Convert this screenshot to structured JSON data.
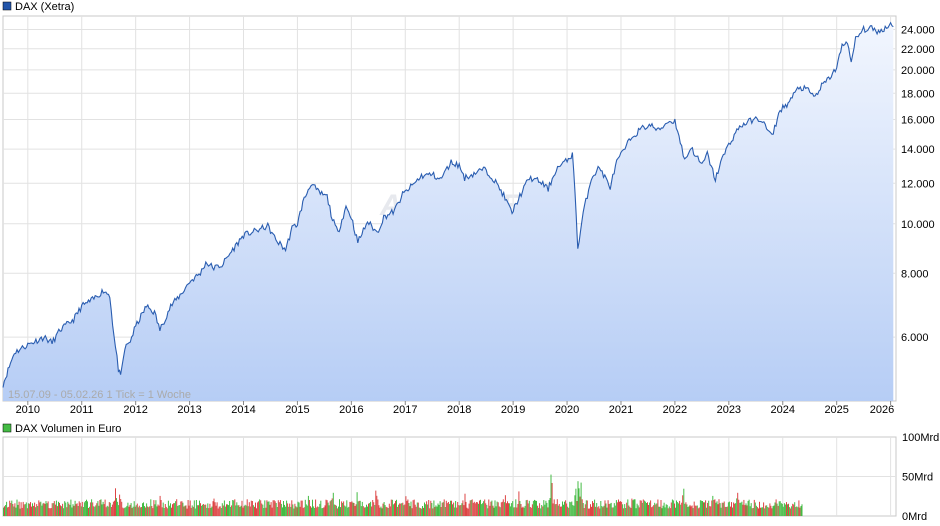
{
  "legend": {
    "price_label": "DAX (Xetra)",
    "price_color": "#2255aa",
    "volume_label": "DAX Volumen in Euro",
    "volume_color": "#44bb44"
  },
  "footnote": "15.07.09 - 05.02.26    1 Tick = 1 Woche",
  "watermark": "ARIVA.DE",
  "chart_data": [
    {
      "type": "area",
      "scale": "log",
      "grid": true,
      "ylim": [
        4500,
        25500
      ],
      "y_ticks": [
        {
          "value": 6000,
          "label": "6.000"
        },
        {
          "value": 8000,
          "label": "8.000"
        },
        {
          "value": 10000,
          "label": "10.000"
        },
        {
          "value": 12000,
          "label": "12.000"
        },
        {
          "value": 14000,
          "label": "14.000"
        },
        {
          "value": 16000,
          "label": "16.000"
        },
        {
          "value": 18000,
          "label": "18.000"
        },
        {
          "value": 20000,
          "label": "20.000"
        },
        {
          "value": 22000,
          "label": "22.000"
        },
        {
          "value": 24000,
          "label": "24.000"
        }
      ],
      "x_ticks": [
        "2010",
        "2011",
        "2012",
        "2013",
        "2014",
        "2015",
        "2016",
        "2017",
        "2018",
        "2019",
        "2020",
        "2021",
        "2022",
        "2023",
        "2024",
        "2025",
        "2026"
      ],
      "xlim": [
        2009.54,
        2026.1
      ],
      "series": [
        {
          "line_color": "#2a5db0",
          "fill_top": "#f2f6fe",
          "fill_bottom": "#b6cdf5",
          "points": [
            [
              2009.54,
              4850
            ],
            [
              2009.75,
              5600
            ],
            [
              2010.0,
              5800
            ],
            [
              2010.3,
              6000
            ],
            [
              2010.45,
              5850
            ],
            [
              2010.6,
              6200
            ],
            [
              2010.85,
              6500
            ],
            [
              2011.0,
              6900
            ],
            [
              2011.2,
              7100
            ],
            [
              2011.4,
              7400
            ],
            [
              2011.52,
              7250
            ],
            [
              2011.6,
              6000
            ],
            [
              2011.68,
              5200
            ],
            [
              2011.72,
              5000
            ],
            [
              2011.8,
              5700
            ],
            [
              2011.9,
              5900
            ],
            [
              2012.0,
              6300
            ],
            [
              2012.2,
              6900
            ],
            [
              2012.35,
              6700
            ],
            [
              2012.45,
              6200
            ],
            [
              2012.65,
              6900
            ],
            [
              2012.85,
              7300
            ],
            [
              2013.0,
              7700
            ],
            [
              2013.2,
              8000
            ],
            [
              2013.3,
              8400
            ],
            [
              2013.45,
              8200
            ],
            [
              2013.6,
              8300
            ],
            [
              2013.8,
              8900
            ],
            [
              2014.0,
              9500
            ],
            [
              2014.25,
              9700
            ],
            [
              2014.45,
              9900
            ],
            [
              2014.6,
              9300
            ],
            [
              2014.78,
              8900
            ],
            [
              2014.9,
              9800
            ],
            [
              2015.0,
              10000
            ],
            [
              2015.1,
              11000
            ],
            [
              2015.25,
              12000
            ],
            [
              2015.4,
              11500
            ],
            [
              2015.55,
              11300
            ],
            [
              2015.65,
              10200
            ],
            [
              2015.75,
              9600
            ],
            [
              2015.9,
              10800
            ],
            [
              2016.0,
              10300
            ],
            [
              2016.12,
              9200
            ],
            [
              2016.3,
              10100
            ],
            [
              2016.48,
              9600
            ],
            [
              2016.6,
              10300
            ],
            [
              2016.8,
              10600
            ],
            [
              2016.95,
              11400
            ],
            [
              2017.1,
              11800
            ],
            [
              2017.3,
              12400
            ],
            [
              2017.5,
              12500
            ],
            [
              2017.65,
              12200
            ],
            [
              2017.85,
              13200
            ],
            [
              2018.0,
              13000
            ],
            [
              2018.1,
              12300
            ],
            [
              2018.25,
              12500
            ],
            [
              2018.45,
              12800
            ],
            [
              2018.6,
              12400
            ],
            [
              2018.8,
              11500
            ],
            [
              2018.98,
              10500
            ],
            [
              2019.1,
              11200
            ],
            [
              2019.3,
              12300
            ],
            [
              2019.5,
              12100
            ],
            [
              2019.65,
              11700
            ],
            [
              2019.8,
              12800
            ],
            [
              2020.0,
              13300
            ],
            [
              2020.1,
              13700
            ],
            [
              2020.17,
              10500
            ],
            [
              2020.2,
              8900
            ],
            [
              2020.3,
              10500
            ],
            [
              2020.45,
              12300
            ],
            [
              2020.6,
              12900
            ],
            [
              2020.8,
              11800
            ],
            [
              2020.92,
              13200
            ],
            [
              2021.05,
              13900
            ],
            [
              2021.2,
              14800
            ],
            [
              2021.4,
              15400
            ],
            [
              2021.55,
              15600
            ],
            [
              2021.7,
              15200
            ],
            [
              2021.85,
              15800
            ],
            [
              2022.0,
              15900
            ],
            [
              2022.1,
              14500
            ],
            [
              2022.18,
              13300
            ],
            [
              2022.3,
              14100
            ],
            [
              2022.5,
              13000
            ],
            [
              2022.6,
              13700
            ],
            [
              2022.75,
              12200
            ],
            [
              2022.85,
              13200
            ],
            [
              2023.0,
              14300
            ],
            [
              2023.2,
              15500
            ],
            [
              2023.45,
              16000
            ],
            [
              2023.6,
              16000
            ],
            [
              2023.8,
              14800
            ],
            [
              2023.95,
              16700
            ],
            [
              2024.1,
              17200
            ],
            [
              2024.3,
              18500
            ],
            [
              2024.45,
              18300
            ],
            [
              2024.6,
              17700
            ],
            [
              2024.72,
              18600
            ],
            [
              2024.85,
              19200
            ],
            [
              2025.0,
              20200
            ],
            [
              2025.1,
              22300
            ],
            [
              2025.2,
              22800
            ],
            [
              2025.27,
              20500
            ],
            [
              2025.35,
              23000
            ],
            [
              2025.5,
              24000
            ],
            [
              2025.65,
              24100
            ],
            [
              2025.8,
              23700
            ],
            [
              2025.9,
              24200
            ],
            [
              2026.0,
              24600
            ],
            [
              2026.05,
              24300
            ]
          ]
        }
      ]
    },
    {
      "type": "bar",
      "grid": true,
      "ylim": [
        0,
        100
      ],
      "y_ticks": [
        {
          "value": 0,
          "label": "0Mrd"
        },
        {
          "value": 50,
          "label": "50Mrd"
        },
        {
          "value": 100,
          "label": "100Mrd"
        }
      ],
      "series": [
        {
          "name": "DAX Volumen in Euro",
          "bar_colors": [
            "#dd4444",
            "#44bb44"
          ],
          "weeks": [
            2009.54,
            2024.35
          ],
          "baseline_volume": 17,
          "spikes": [
            [
              2011.62,
              38
            ],
            [
              2011.7,
              32
            ],
            [
              2012.45,
              30
            ],
            [
              2013.45,
              26
            ],
            [
              2014.55,
              26
            ],
            [
              2015.2,
              30
            ],
            [
              2015.65,
              34
            ],
            [
              2016.1,
              32
            ],
            [
              2016.45,
              38
            ],
            [
              2017.0,
              26
            ],
            [
              2018.1,
              30
            ],
            [
              2018.85,
              28
            ],
            [
              2019.1,
              33
            ],
            [
              2019.7,
              62
            ],
            [
              2020.15,
              40
            ],
            [
              2020.2,
              52
            ],
            [
              2020.25,
              44
            ],
            [
              2021.2,
              26
            ],
            [
              2022.15,
              40
            ],
            [
              2022.7,
              30
            ],
            [
              2023.15,
              34
            ]
          ]
        }
      ]
    }
  ]
}
